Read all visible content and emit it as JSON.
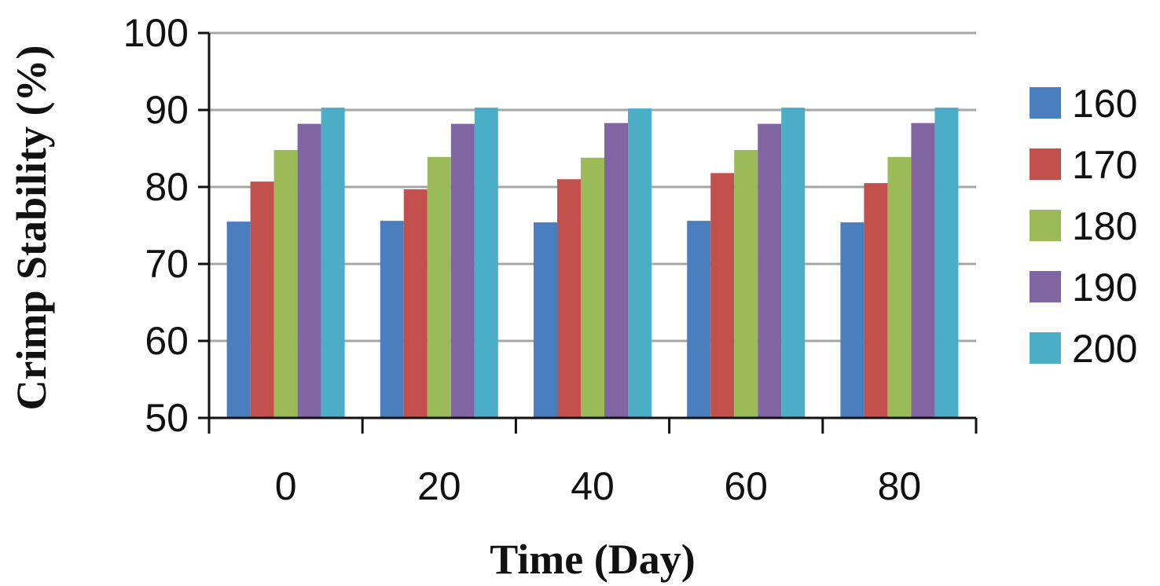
{
  "chart_data": {
    "type": "bar",
    "title": "",
    "xlabel": "Time (Day)",
    "ylabel": "Crimp Stability (%)",
    "categories": [
      "0",
      "20",
      "40",
      "60",
      "80"
    ],
    "ylim": [
      50,
      100
    ],
    "yticks": [
      50,
      60,
      70,
      80,
      90,
      100
    ],
    "grid": true,
    "legend_position": "right",
    "series": [
      {
        "name": "160",
        "color": "#4a7ebf",
        "values": [
          75.5,
          75.6,
          75.4,
          75.6,
          75.4
        ]
      },
      {
        "name": "170",
        "color": "#c2504d",
        "values": [
          80.7,
          79.7,
          81.0,
          81.8,
          80.5
        ]
      },
      {
        "name": "180",
        "color": "#9bbb59",
        "values": [
          84.8,
          83.9,
          83.8,
          84.8,
          83.9
        ]
      },
      {
        "name": "190",
        "color": "#8065a2",
        "values": [
          88.2,
          88.2,
          88.3,
          88.2,
          88.3
        ]
      },
      {
        "name": "200",
        "color": "#4badc6",
        "values": [
          90.3,
          90.3,
          90.2,
          90.3,
          90.3
        ]
      }
    ]
  }
}
